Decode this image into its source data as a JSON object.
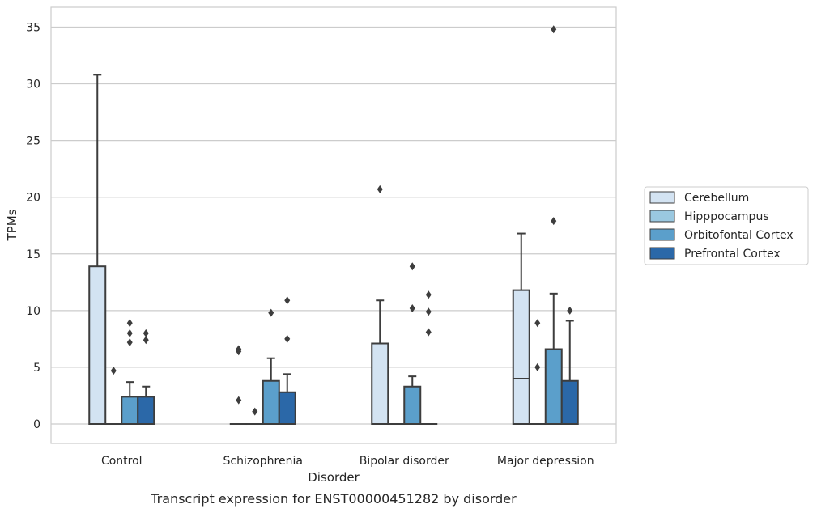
{
  "chart_data": {
    "type": "box",
    "caption": "Transcript expression for ENST00000451282 by disorder",
    "xlabel": "Disorder",
    "ylabel": "TPMs",
    "ylim": [
      -1.7,
      36.5
    ],
    "yticks": [
      0,
      5,
      10,
      15,
      20,
      25,
      30,
      35
    ],
    "grid": "horizontal",
    "legend_position": "right",
    "categories": [
      "Control",
      "Schizophrenia",
      "Bipolar disorder",
      "Major depression"
    ],
    "series": [
      {
        "name": "Cerebellum",
        "color": "#d3e3f2",
        "boxes": [
          {
            "q1": 0,
            "median": 0,
            "q3": 13.9,
            "whisker_low": 0,
            "whisker_high": 30.8,
            "outliers": []
          },
          {
            "q1": 0,
            "median": 0,
            "q3": 0,
            "whisker_low": 0,
            "whisker_high": 0,
            "outliers": [
              6.4,
              6.6,
              2.1
            ]
          },
          {
            "q1": 0,
            "median": 0,
            "q3": 7.1,
            "whisker_low": 0,
            "whisker_high": 10.9,
            "outliers": [
              20.7
            ]
          },
          {
            "q1": 0,
            "median": 4.0,
            "q3": 11.8,
            "whisker_low": 0,
            "whisker_high": 16.8,
            "outliers": []
          }
        ]
      },
      {
        "name": "Hipppocampus",
        "color": "#9ac8e0",
        "boxes": [
          {
            "q1": 0,
            "median": 0,
            "q3": 0,
            "whisker_low": 0,
            "whisker_high": 0,
            "outliers": [
              4.7
            ]
          },
          {
            "q1": 0,
            "median": 0,
            "q3": 0,
            "whisker_low": 0,
            "whisker_high": 0,
            "outliers": [
              1.1
            ]
          },
          {
            "q1": 0,
            "median": 0,
            "q3": 0,
            "whisker_low": 0,
            "whisker_high": 0,
            "outliers": []
          },
          {
            "q1": 0,
            "median": 0,
            "q3": 0,
            "whisker_low": 0,
            "whisker_high": 0,
            "outliers": [
              8.9,
              5.0
            ]
          }
        ]
      },
      {
        "name": "Orbitofontal Cortex",
        "color": "#5b9fcb",
        "boxes": [
          {
            "q1": 0,
            "median": 0,
            "q3": 2.4,
            "whisker_low": 0,
            "whisker_high": 3.7,
            "outliers": [
              8.9,
              8.0,
              7.2
            ]
          },
          {
            "q1": 0,
            "median": 0,
            "q3": 3.8,
            "whisker_low": 0,
            "whisker_high": 5.8,
            "outliers": [
              9.8
            ]
          },
          {
            "q1": 0,
            "median": 0,
            "q3": 3.3,
            "whisker_low": 0,
            "whisker_high": 4.2,
            "outliers": [
              13.9,
              10.2
            ]
          },
          {
            "q1": 0,
            "median": 0,
            "q3": 6.6,
            "whisker_low": 0,
            "whisker_high": 11.5,
            "outliers": [
              34.8,
              17.9
            ]
          }
        ]
      },
      {
        "name": "Prefrontal Cortex",
        "color": "#2b68a8",
        "boxes": [
          {
            "q1": 0,
            "median": 0,
            "q3": 2.4,
            "whisker_low": 0,
            "whisker_high": 3.3,
            "outliers": [
              8.0,
              7.4
            ]
          },
          {
            "q1": 0,
            "median": 0,
            "q3": 2.8,
            "whisker_low": 0,
            "whisker_high": 4.4,
            "outliers": [
              10.9,
              7.5
            ]
          },
          {
            "q1": 0,
            "median": 0,
            "q3": 0,
            "whisker_low": 0,
            "whisker_high": 0,
            "outliers": [
              11.4,
              9.9,
              8.1
            ]
          },
          {
            "q1": 0,
            "median": 0,
            "q3": 3.8,
            "whisker_low": 0,
            "whisker_high": 9.1,
            "outliers": [
              10.0
            ]
          }
        ]
      }
    ]
  }
}
